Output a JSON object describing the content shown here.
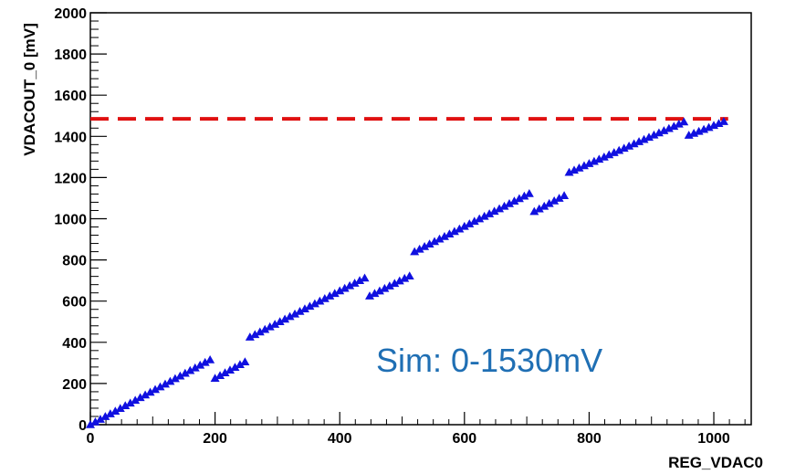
{
  "chart_data": {
    "type": "scatter",
    "xlabel": "REG_VDAC0",
    "ylabel": "VDACOUT_0 [mV]",
    "xlim": [
      0,
      1060
    ],
    "ylim": [
      0,
      2000
    ],
    "x_ticks": [
      0,
      200,
      400,
      600,
      800,
      1000
    ],
    "y_ticks": [
      0,
      200,
      400,
      600,
      800,
      1000,
      1200,
      1400,
      1600,
      1800,
      2000
    ],
    "marker": "triangle",
    "marker_color": "#1010e0",
    "reference_line": {
      "y": 1485,
      "x_start": 0,
      "x_end": 1023,
      "color": "#e01010",
      "style": "dashed"
    },
    "annotation": "Sim: 0-1530mV",
    "segments": [
      {
        "x_start": 0,
        "x_end": 192,
        "y_start": 0,
        "y_end": 315
      },
      {
        "x_start": 200,
        "x_end": 248,
        "y_start": 225,
        "y_end": 305
      },
      {
        "x_start": 256,
        "x_end": 440,
        "y_start": 425,
        "y_end": 712
      },
      {
        "x_start": 448,
        "x_end": 512,
        "y_start": 625,
        "y_end": 722
      },
      {
        "x_start": 520,
        "x_end": 704,
        "y_start": 840,
        "y_end": 1122
      },
      {
        "x_start": 712,
        "x_end": 760,
        "y_start": 1035,
        "y_end": 1112
      },
      {
        "x_start": 768,
        "x_end": 952,
        "y_start": 1225,
        "y_end": 1470
      },
      {
        "x_start": 960,
        "x_end": 1023,
        "y_start": 1405,
        "y_end": 1480
      }
    ],
    "step": 8
  }
}
